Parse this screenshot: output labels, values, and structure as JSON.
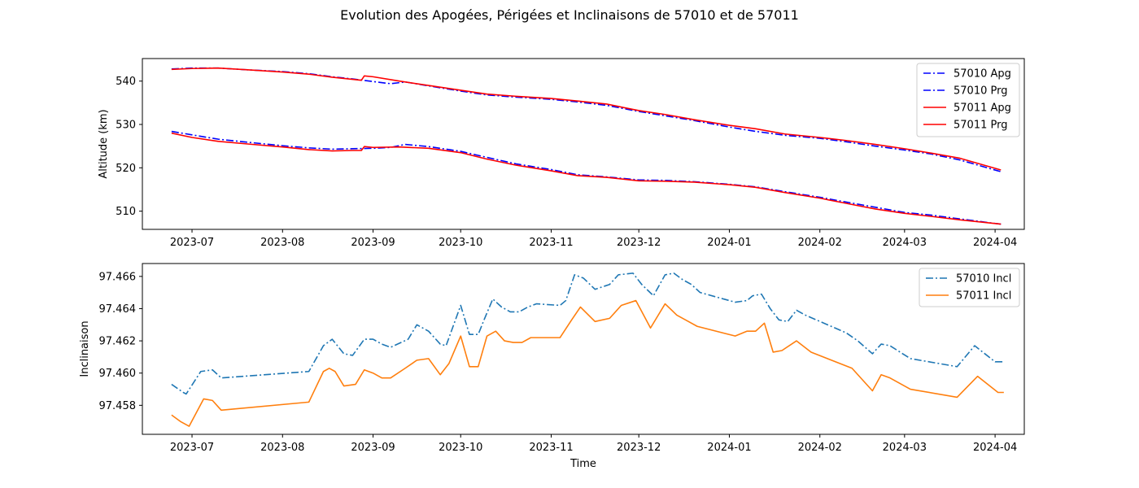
{
  "figure": {
    "title": "Evolution des Apogées, Périgées et Inclinaisons de 57010 et de 57011"
  },
  "colors": {
    "apg_57010": "#0000ff",
    "prg_57010": "#0000ff",
    "apg_57011": "#ff0000",
    "prg_57011": "#ff0000",
    "incl_57010": "#1f77b4",
    "incl_57011": "#ff7f0e",
    "axis": "#000000",
    "background": "#ffffff"
  },
  "chart_data": [
    {
      "type": "line",
      "title": "",
      "xlabel": "",
      "ylabel": "Altitude (km)",
      "x_type": "date",
      "xlim": [
        "2023-06-14",
        "2024-04-11"
      ],
      "ylim": [
        505.8,
        545.2
      ],
      "x_ticks": [
        "2023-07-01",
        "2023-08-01",
        "2023-09-01",
        "2023-10-01",
        "2023-11-01",
        "2023-12-01",
        "2024-01-01",
        "2024-02-01",
        "2024-03-01",
        "2024-04-01"
      ],
      "x_tick_labels": [
        "2023-07",
        "2023-08",
        "2023-09",
        "2023-10",
        "2023-11",
        "2023-12",
        "2024-01",
        "2024-02",
        "2024-03",
        "2024-04"
      ],
      "y_ticks": [
        510,
        520,
        530,
        540
      ],
      "y_tick_labels": [
        "510",
        "520",
        "530",
        "540"
      ],
      "grid": false,
      "legend": "top-right",
      "series": [
        {
          "name": "57010 Apg",
          "style": "dashdot",
          "color_key": "apg_57010",
          "x": [
            "2023-06-24",
            "2023-07-01",
            "2023-07-10",
            "2023-07-20",
            "2023-08-01",
            "2023-08-10",
            "2023-08-18",
            "2023-08-25",
            "2023-09-01",
            "2023-09-07",
            "2023-09-12",
            "2023-09-20",
            "2023-10-01",
            "2023-10-10",
            "2023-10-20",
            "2023-11-01",
            "2023-11-10",
            "2023-11-20",
            "2023-12-01",
            "2023-12-10",
            "2023-12-20",
            "2024-01-01",
            "2024-01-10",
            "2024-01-20",
            "2024-02-01",
            "2024-02-10",
            "2024-02-20",
            "2024-03-01",
            "2024-03-10",
            "2024-03-20",
            "2024-04-03"
          ],
          "y": [
            542.8,
            543.0,
            543.0,
            542.6,
            542.2,
            541.7,
            541.0,
            540.5,
            539.9,
            539.4,
            539.8,
            538.9,
            537.7,
            536.8,
            536.3,
            535.8,
            535.2,
            534.4,
            533.0,
            532.0,
            530.9,
            529.4,
            528.4,
            527.5,
            526.8,
            526.0,
            525.0,
            524.1,
            523.2,
            521.8,
            519.1
          ]
        },
        {
          "name": "57010 Prg",
          "style": "dashdot",
          "color_key": "prg_57010",
          "x": [
            "2023-06-24",
            "2023-07-01",
            "2023-07-10",
            "2023-07-20",
            "2023-08-01",
            "2023-08-10",
            "2023-08-18",
            "2023-08-25",
            "2023-09-01",
            "2023-09-07",
            "2023-09-12",
            "2023-09-20",
            "2023-10-01",
            "2023-10-10",
            "2023-10-20",
            "2023-11-01",
            "2023-11-10",
            "2023-11-20",
            "2023-12-01",
            "2023-12-10",
            "2023-12-20",
            "2024-01-01",
            "2024-01-10",
            "2024-01-20",
            "2024-02-01",
            "2024-02-10",
            "2024-02-20",
            "2024-03-01",
            "2024-03-10",
            "2024-03-20",
            "2024-04-03"
          ],
          "y": [
            528.4,
            527.6,
            526.6,
            525.9,
            525.1,
            524.6,
            524.3,
            524.4,
            524.5,
            524.7,
            525.4,
            524.9,
            523.8,
            522.4,
            520.9,
            519.6,
            518.4,
            517.9,
            517.2,
            517.1,
            516.8,
            516.2,
            515.6,
            514.5,
            513.2,
            512.1,
            510.9,
            509.7,
            509.1,
            508.2,
            507.0
          ]
        },
        {
          "name": "57011 Apg",
          "style": "solid",
          "color_key": "apg_57011",
          "x": [
            "2023-06-24",
            "2023-07-01",
            "2023-07-10",
            "2023-07-20",
            "2023-08-01",
            "2023-08-10",
            "2023-08-18",
            "2023-08-25",
            "2023-08-28",
            "2023-08-29",
            "2023-09-01",
            "2023-09-10",
            "2023-09-20",
            "2023-10-01",
            "2023-10-10",
            "2023-10-20",
            "2023-11-01",
            "2023-11-10",
            "2023-11-20",
            "2023-12-01",
            "2023-12-10",
            "2023-12-20",
            "2024-01-01",
            "2024-01-10",
            "2024-01-20",
            "2024-02-01",
            "2024-02-10",
            "2024-02-20",
            "2024-03-01",
            "2024-03-10",
            "2024-03-20",
            "2024-04-03"
          ],
          "y": [
            542.7,
            542.9,
            543.0,
            542.6,
            542.1,
            541.6,
            540.9,
            540.4,
            540.2,
            541.2,
            541.0,
            540.0,
            539.0,
            537.9,
            537.0,
            536.5,
            536.0,
            535.4,
            534.7,
            533.2,
            532.3,
            531.1,
            529.8,
            529.0,
            527.8,
            527.0,
            526.3,
            525.4,
            524.4,
            523.4,
            522.2,
            519.5
          ]
        },
        {
          "name": "57011 Prg",
          "style": "solid",
          "color_key": "prg_57011",
          "x": [
            "2023-06-24",
            "2023-07-01",
            "2023-07-10",
            "2023-07-20",
            "2023-08-01",
            "2023-08-10",
            "2023-08-18",
            "2023-08-25",
            "2023-08-28",
            "2023-08-29",
            "2023-09-01",
            "2023-09-10",
            "2023-09-20",
            "2023-10-01",
            "2023-10-10",
            "2023-10-20",
            "2023-11-01",
            "2023-11-10",
            "2023-11-20",
            "2023-12-01",
            "2023-12-10",
            "2023-12-20",
            "2024-01-01",
            "2024-01-10",
            "2024-01-20",
            "2024-02-01",
            "2024-02-10",
            "2024-02-20",
            "2024-03-01",
            "2024-03-10",
            "2024-03-20",
            "2024-04-03"
          ],
          "y": [
            528.0,
            527.0,
            526.1,
            525.5,
            524.8,
            524.2,
            523.9,
            524.0,
            524.0,
            524.9,
            524.7,
            524.8,
            524.5,
            523.5,
            522.0,
            520.6,
            519.3,
            518.2,
            517.8,
            517.0,
            516.9,
            516.7,
            516.1,
            515.5,
            514.3,
            513.0,
            511.8,
            510.5,
            509.5,
            508.8,
            508.0,
            507.0
          ]
        }
      ]
    },
    {
      "type": "line",
      "title": "",
      "xlabel": "Time",
      "ylabel": "Inclinaison",
      "x_type": "date",
      "xlim": [
        "2023-06-14",
        "2024-04-11"
      ],
      "ylim": [
        97.4562,
        97.4668
      ],
      "x_ticks": [
        "2023-07-01",
        "2023-08-01",
        "2023-09-01",
        "2023-10-01",
        "2023-11-01",
        "2023-12-01",
        "2024-01-01",
        "2024-02-01",
        "2024-03-01",
        "2024-04-01"
      ],
      "x_tick_labels": [
        "2023-07",
        "2023-08",
        "2023-09",
        "2023-10",
        "2023-11",
        "2023-12",
        "2024-01",
        "2024-02",
        "2024-03",
        "2024-04"
      ],
      "y_ticks": [
        97.458,
        97.46,
        97.462,
        97.464,
        97.466
      ],
      "y_tick_labels": [
        "97.458",
        "97.460",
        "97.462",
        "97.464",
        "97.466"
      ],
      "grid": false,
      "legend": "top-right",
      "series": [
        {
          "name": "57010 Incl",
          "style": "dashdot",
          "color_key": "incl_57010",
          "x": [
            "2023-06-24",
            "2023-06-28",
            "2023-06-29",
            "2023-07-04",
            "2023-07-08",
            "2023-07-11",
            "2023-08-10",
            "2023-08-15",
            "2023-08-18",
            "2023-08-22",
            "2023-08-25",
            "2023-08-29",
            "2023-09-01",
            "2023-09-04",
            "2023-09-07",
            "2023-09-13",
            "2023-09-16",
            "2023-09-20",
            "2023-09-24",
            "2023-09-26",
            "2023-10-01",
            "2023-10-04",
            "2023-10-07",
            "2023-10-09",
            "2023-10-12",
            "2023-10-15",
            "2023-10-18",
            "2023-10-21",
            "2023-10-24",
            "2023-10-27",
            "2023-11-04",
            "2023-11-06",
            "2023-11-09",
            "2023-11-12",
            "2023-11-16",
            "2023-11-21",
            "2023-11-24",
            "2023-11-29",
            "2023-12-02",
            "2023-12-06",
            "2023-12-10",
            "2023-12-13",
            "2023-12-16",
            "2023-12-19",
            "2023-12-22",
            "2024-01-03",
            "2024-01-07",
            "2024-01-09",
            "2024-01-12",
            "2024-01-15",
            "2024-01-18",
            "2024-01-21",
            "2024-01-24",
            "2024-01-27",
            "2024-02-10",
            "2024-02-14",
            "2024-02-19",
            "2024-02-22",
            "2024-02-25",
            "2024-03-03",
            "2024-03-19",
            "2024-03-25",
            "2024-04-01",
            "2024-04-04"
          ],
          "y": [
            97.4593,
            97.4588,
            97.4587,
            97.4601,
            97.4602,
            97.4597,
            97.4601,
            97.4617,
            97.4621,
            97.4612,
            97.4611,
            97.4621,
            97.4621,
            97.4618,
            97.4616,
            97.4621,
            97.463,
            97.4626,
            97.4618,
            97.4617,
            97.4642,
            97.4624,
            97.4624,
            97.4633,
            97.4646,
            97.4641,
            97.4638,
            97.4638,
            97.4641,
            97.4643,
            97.4642,
            97.4645,
            97.4661,
            97.4659,
            97.4652,
            97.4655,
            97.4661,
            97.4662,
            97.4655,
            97.4648,
            97.4661,
            97.4662,
            97.4658,
            97.4655,
            97.465,
            97.4644,
            97.4645,
            97.4648,
            97.4649,
            97.464,
            97.4633,
            97.4632,
            97.4639,
            97.4636,
            97.4625,
            97.462,
            97.4612,
            97.4618,
            97.4617,
            97.4609,
            97.4604,
            97.4617,
            97.4607,
            97.4607
          ]
        },
        {
          "name": "57011 Incl",
          "style": "solid",
          "color_key": "incl_57011",
          "x": [
            "2023-06-24",
            "2023-06-27",
            "2023-06-30",
            "2023-07-05",
            "2023-07-08",
            "2023-07-11",
            "2023-08-10",
            "2023-08-15",
            "2023-08-17",
            "2023-08-19",
            "2023-08-22",
            "2023-08-26",
            "2023-08-29",
            "2023-09-01",
            "2023-09-04",
            "2023-09-07",
            "2023-09-12",
            "2023-09-16",
            "2023-09-20",
            "2023-09-24",
            "2023-09-27",
            "2023-10-01",
            "2023-10-04",
            "2023-10-07",
            "2023-10-10",
            "2023-10-13",
            "2023-10-16",
            "2023-10-19",
            "2023-10-22",
            "2023-10-25",
            "2023-11-04",
            "2023-11-08",
            "2023-11-11",
            "2023-11-16",
            "2023-11-21",
            "2023-11-25",
            "2023-11-30",
            "2023-12-05",
            "2023-12-10",
            "2023-12-14",
            "2023-12-18",
            "2023-12-21",
            "2024-01-03",
            "2024-01-07",
            "2024-01-10",
            "2024-01-13",
            "2024-01-16",
            "2024-01-19",
            "2024-01-24",
            "2024-01-29",
            "2024-02-12",
            "2024-02-16",
            "2024-02-19",
            "2024-02-22",
            "2024-02-25",
            "2024-03-03",
            "2024-03-19",
            "2024-03-26",
            "2024-04-02",
            "2024-04-04"
          ],
          "y": [
            97.4574,
            97.457,
            97.4567,
            97.4584,
            97.4583,
            97.4577,
            97.4582,
            97.4601,
            97.4603,
            97.4601,
            97.4592,
            97.4593,
            97.4602,
            97.46,
            97.4597,
            97.4597,
            97.4603,
            97.4608,
            97.4609,
            97.4599,
            97.4606,
            97.4623,
            97.4604,
            97.4604,
            97.4623,
            97.4626,
            97.462,
            97.4619,
            97.4619,
            97.4622,
            97.4622,
            97.4633,
            97.4641,
            97.4632,
            97.4634,
            97.4642,
            97.4645,
            97.4628,
            97.4643,
            97.4636,
            97.4632,
            97.4629,
            97.4623,
            97.4626,
            97.4626,
            97.4631,
            97.4613,
            97.4614,
            97.462,
            97.4613,
            97.4603,
            97.4595,
            97.4589,
            97.4599,
            97.4597,
            97.459,
            97.4585,
            97.4598,
            97.4588,
            97.4588
          ]
        }
      ]
    }
  ]
}
